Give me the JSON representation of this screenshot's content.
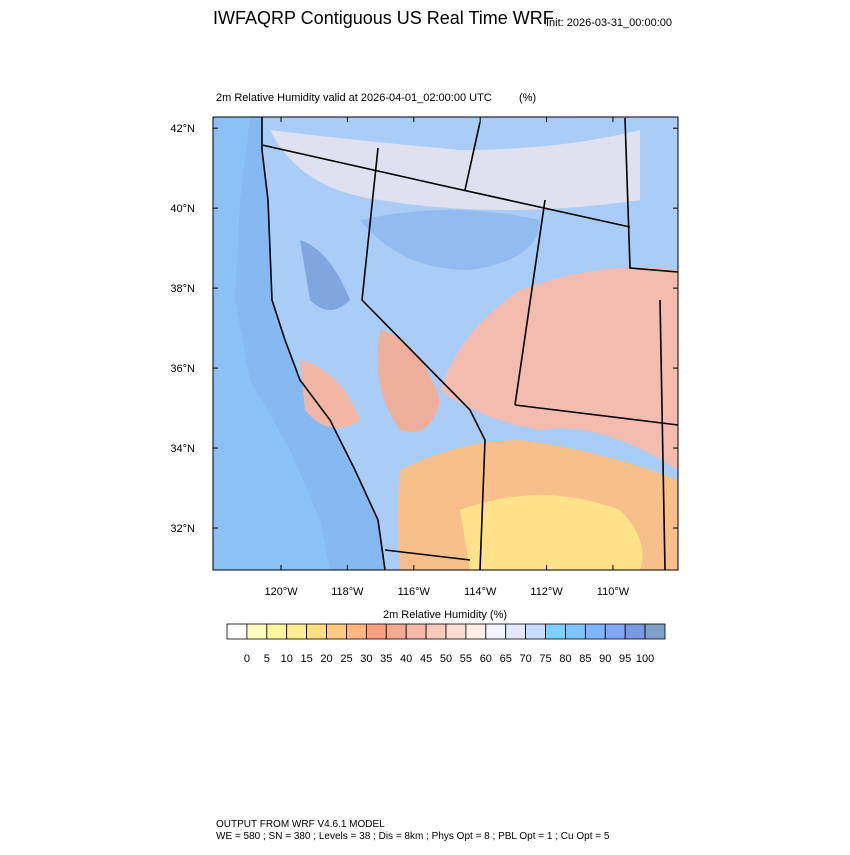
{
  "header": {
    "title": "IWFAQRP Contiguous US Real Time WRF",
    "init": "Init: 2026-03-31_00:00:00"
  },
  "map": {
    "subtitle": "2m Relative Humidity valid at 2026-04-01_02:00:00 UTC",
    "units": "(%)",
    "lat_range": [
      30.95,
      42.28
    ],
    "lon_range": [
      -122.05,
      -108.04
    ],
    "lat_ticks": [
      {
        "value": 32,
        "label": "32°N"
      },
      {
        "value": 34,
        "label": "34°N"
      },
      {
        "value": 36,
        "label": "36°N"
      },
      {
        "value": 38,
        "label": "38°N"
      },
      {
        "value": 40,
        "label": "40°N"
      },
      {
        "value": 42,
        "label": "42°N"
      }
    ],
    "lon_ticks": [
      {
        "value": -120,
        "label": "120°W"
      },
      {
        "value": -118,
        "label": "118°W"
      },
      {
        "value": -116,
        "label": "116°W"
      },
      {
        "value": -114,
        "label": "114°W"
      },
      {
        "value": -112,
        "label": "112°W"
      },
      {
        "value": -110,
        "label": "110°W"
      }
    ]
  },
  "colorbar": {
    "title": "2m Relative Humidity  (%)",
    "levels": [
      0,
      5,
      10,
      15,
      20,
      25,
      30,
      35,
      40,
      45,
      50,
      55,
      60,
      65,
      70,
      75,
      80,
      85,
      90,
      95,
      100
    ],
    "colors": [
      "#ffffff",
      "#ffffbf",
      "#fff7a0",
      "#ffed8f",
      "#ffe080",
      "#ffcc80",
      "#ffb880",
      "#ff9f80",
      "#f2aa94",
      "#f5baa8",
      "#f8cabc",
      "#fbdcd0",
      "#fff0ea",
      "#f4f4ff",
      "#e2e8ff",
      "#c8dcff",
      "#80d0ff",
      "#80c4ff",
      "#80b4ff",
      "#80a6f6",
      "#7898e0",
      "#80a0c8"
    ]
  },
  "footer": {
    "line1": "OUTPUT FROM WRF V4.6.1 MODEL",
    "line2": "WE = 580 ; SN = 380 ; Levels = 38 ; Dis = 8km ; Phys Opt = 8 ; PBL Opt = 1 ; Cu Opt = 5"
  }
}
